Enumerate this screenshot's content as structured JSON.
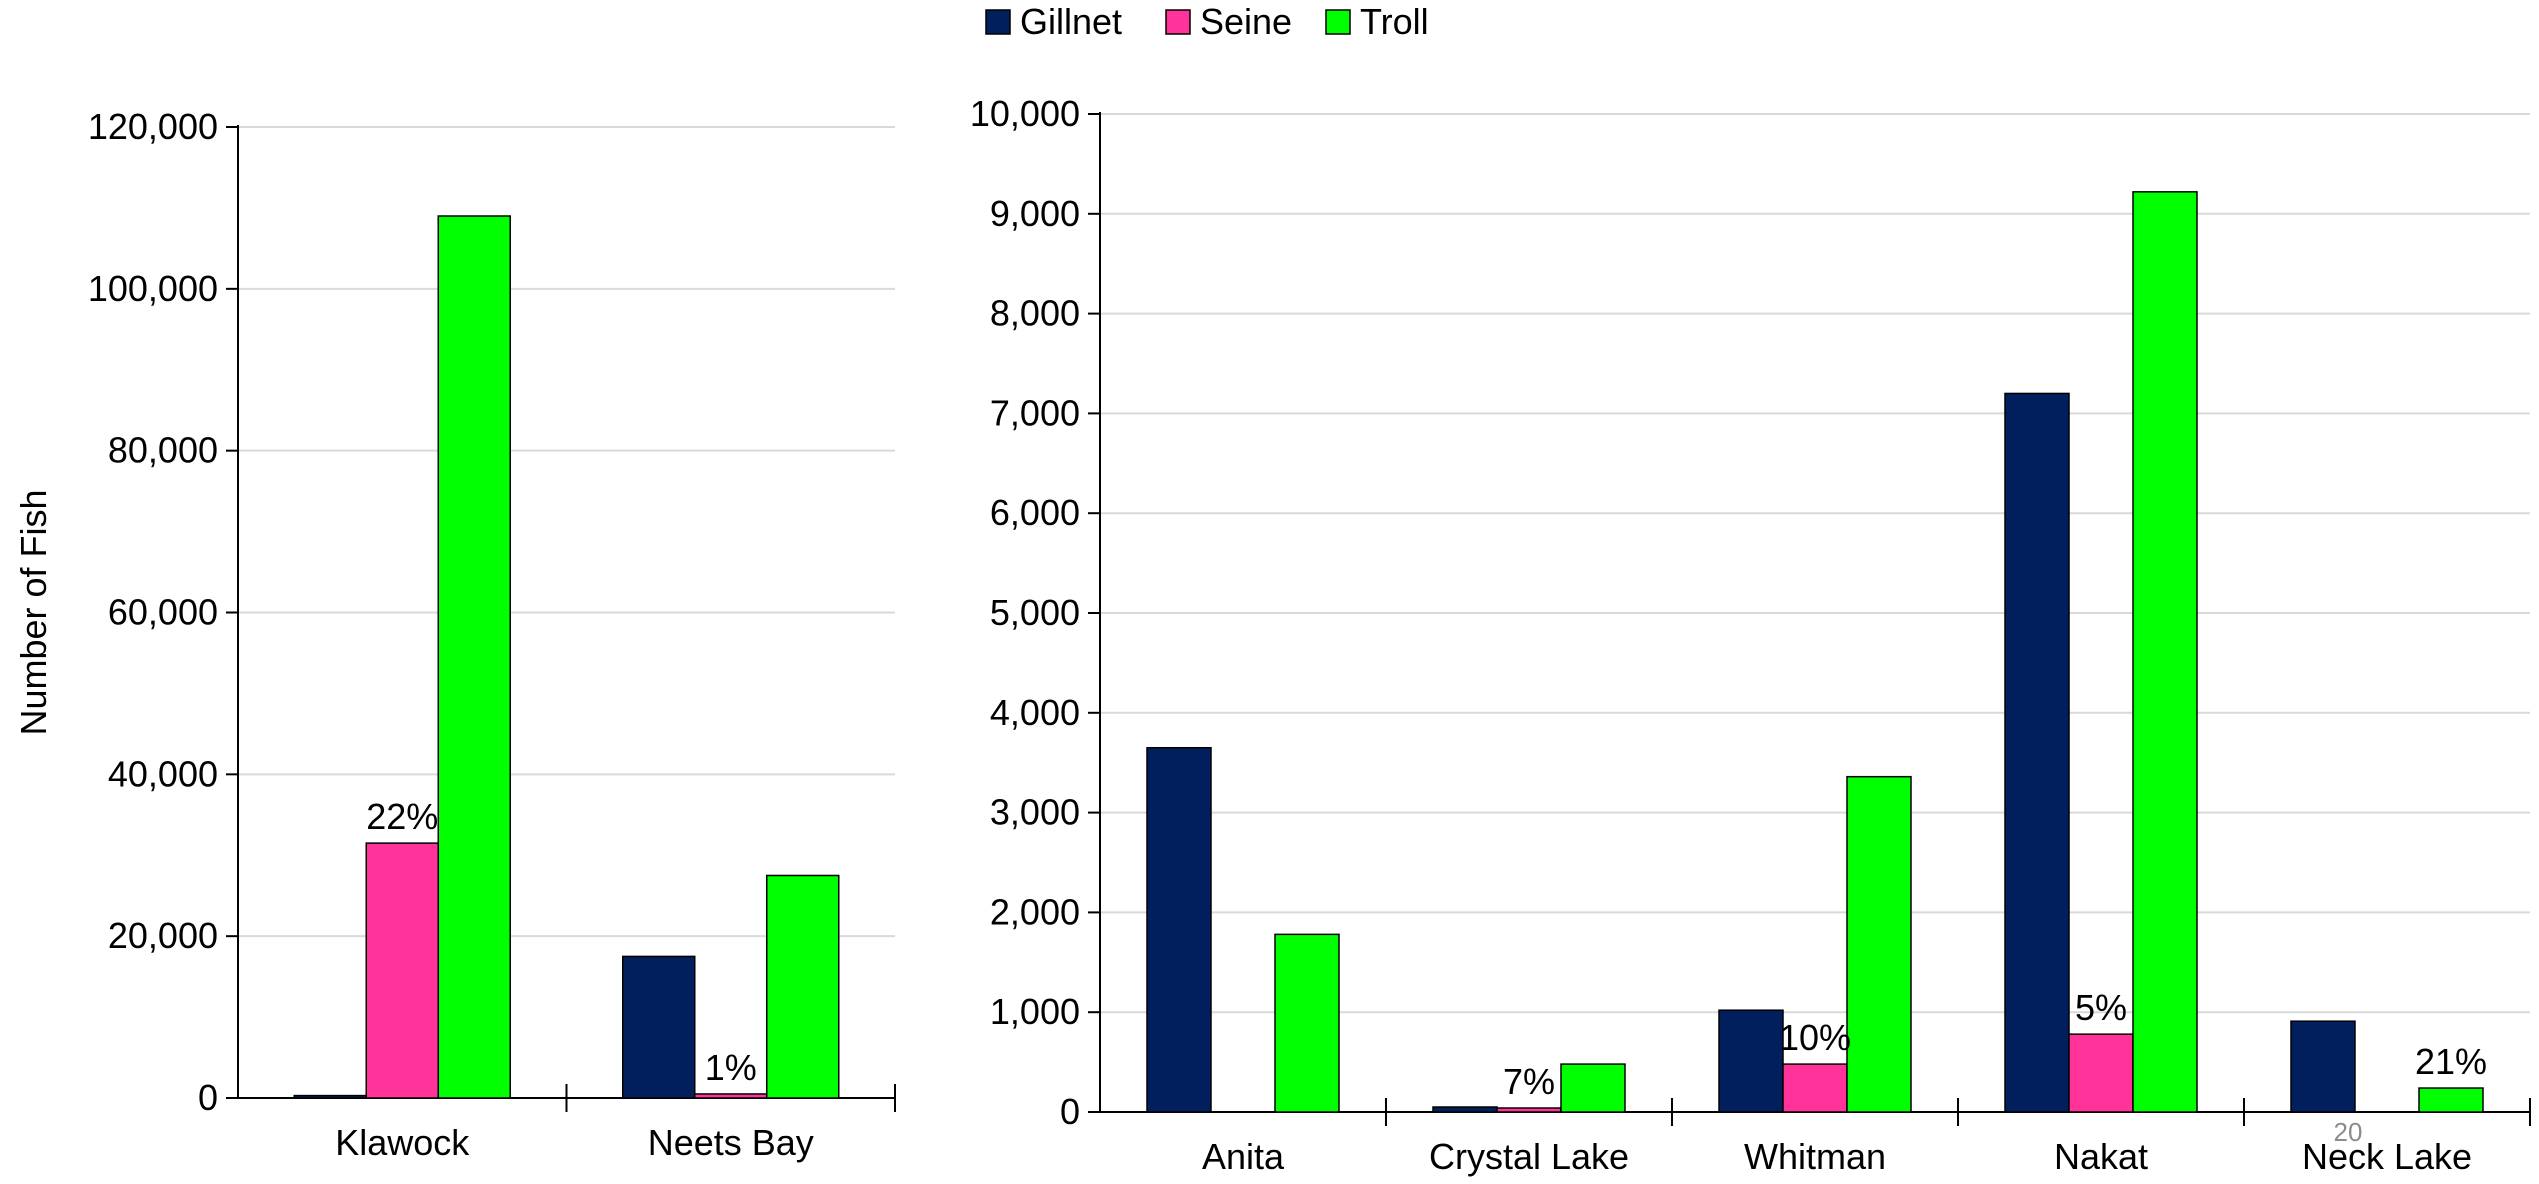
{
  "legend": [
    {
      "name": "Gillnet",
      "color": "#001F5C"
    },
    {
      "name": "Seine",
      "color": "#FF3399"
    },
    {
      "name": "Troll",
      "color": "#00FF00"
    }
  ],
  "footer_text": "20",
  "chart_data": [
    {
      "type": "bar",
      "ylabel": "Number of Fish",
      "ylim": [
        0,
        120000
      ],
      "yticks": [
        0,
        20000,
        40000,
        60000,
        80000,
        100000,
        120000
      ],
      "ytick_labels": [
        "0",
        "20,000",
        "40,000",
        "60,000",
        "80,000",
        "100,000",
        "120,000"
      ],
      "grid": true,
      "categories": [
        "Klawock",
        "Neets Bay"
      ],
      "series": [
        {
          "name": "Gillnet",
          "values": [
            300,
            17500
          ]
        },
        {
          "name": "Seine",
          "values": [
            31500,
            500
          ]
        },
        {
          "name": "Troll",
          "values": [
            109000,
            27500
          ]
        }
      ],
      "annotations": [
        {
          "category": "Klawock",
          "series": "Seine",
          "text": "22%"
        },
        {
          "category": "Neets Bay",
          "series": "Seine",
          "text": "1%"
        }
      ]
    },
    {
      "type": "bar",
      "ylabel": "",
      "ylim": [
        0,
        10000
      ],
      "yticks": [
        0,
        1000,
        2000,
        3000,
        4000,
        5000,
        6000,
        7000,
        8000,
        9000,
        10000
      ],
      "ytick_labels": [
        "0",
        "1,000",
        "2,000",
        "3,000",
        "4,000",
        "5,000",
        "6,000",
        "7,000",
        "8,000",
        "9,000",
        "10,000"
      ],
      "grid": true,
      "categories": [
        "Anita",
        "Crystal Lake",
        "Whitman",
        "Nakat",
        "Neck Lake"
      ],
      "series": [
        {
          "name": "Gillnet",
          "values": [
            3650,
            50,
            1020,
            7200,
            910
          ]
        },
        {
          "name": "Seine",
          "values": [
            0,
            40,
            480,
            780,
            0
          ]
        },
        {
          "name": "Troll",
          "values": [
            1780,
            480,
            3360,
            9220,
            240
          ]
        }
      ],
      "annotations": [
        {
          "category": "Crystal Lake",
          "series": "Seine",
          "text": "7%"
        },
        {
          "category": "Whitman",
          "series": "Seine",
          "text": "10%"
        },
        {
          "category": "Nakat",
          "series": "Seine",
          "text": "5%"
        },
        {
          "category": "Neck Lake",
          "series": "Troll",
          "text": "21%"
        }
      ]
    }
  ]
}
